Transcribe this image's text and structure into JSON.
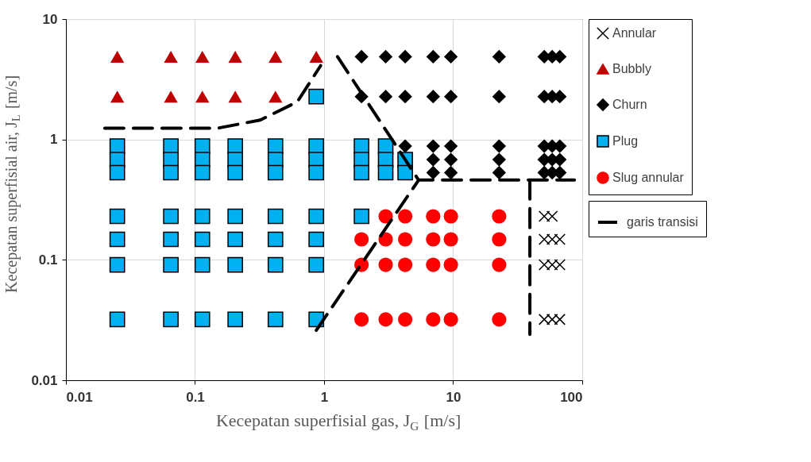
{
  "chart_data": {
    "type": "scatter",
    "xlabel": "Kecepatan superfisial gas, J$_{G}$ [m/s]",
    "ylabel": "Kecepatan superfisial air, J$_{L}$ [m/s]",
    "log": "xy",
    "grid": true,
    "legend": "right",
    "xlim": [
      0.01,
      100
    ],
    "ylim": [
      0.01,
      10
    ],
    "xticks": [
      0.01,
      0.1,
      1,
      10,
      100
    ],
    "yticks": [
      0.01,
      0.1,
      1,
      10
    ],
    "series": [
      {
        "name": "Annular",
        "color": "#000000",
        "marker": "cross",
        "x": [
          50.8,
          58.5,
          50.8,
          58.5,
          67,
          50.8,
          58.5,
          67,
          50.8,
          58.5,
          67
        ],
        "values": [
          0.23,
          0.23,
          0.148,
          0.148,
          0.148,
          0.091,
          0.091,
          0.091,
          0.032,
          0.032,
          0.032
        ]
      },
      {
        "name": "Bubbly",
        "color": "#c00000",
        "marker": "triangle",
        "x": [
          0.025,
          0.065,
          0.114,
          0.205,
          0.42,
          0.87,
          0.025,
          0.065,
          0.114,
          0.205,
          0.42
        ],
        "values": [
          4.87,
          4.87,
          4.87,
          4.87,
          4.87,
          4.87,
          2.27,
          2.27,
          2.27,
          2.27,
          2.27
        ]
      },
      {
        "name": "Churn",
        "color": "#000000",
        "marker": "diamond",
        "x": [
          1.95,
          3.0,
          4.25,
          7.0,
          9.6,
          22.7,
          50.8,
          58.5,
          67,
          1.95,
          3.0,
          4.25,
          7.0,
          9.6,
          22.7,
          50.8,
          58.5,
          67,
          4.25,
          7.0,
          7.0,
          7.0,
          9.6,
          9.6,
          9.6,
          22.7,
          22.7,
          22.7,
          50.8,
          50.8,
          50.8,
          58.5,
          58.5,
          58.5,
          67,
          67,
          67
        ],
        "values": [
          4.87,
          4.87,
          4.87,
          4.87,
          4.87,
          4.87,
          4.87,
          4.87,
          4.87,
          2.27,
          2.27,
          2.27,
          2.27,
          2.27,
          2.27,
          2.27,
          2.27,
          2.27,
          0.88,
          0.88,
          0.68,
          0.53,
          0.88,
          0.68,
          0.53,
          0.88,
          0.68,
          0.53,
          0.88,
          0.68,
          0.53,
          0.88,
          0.68,
          0.53,
          0.88,
          0.68,
          0.53
        ]
      },
      {
        "name": "Plug",
        "color": "#00b0f0",
        "marker": "square",
        "x": [
          0.025,
          0.025,
          0.025,
          0.025,
          0.025,
          0.025,
          0.025,
          0.065,
          0.065,
          0.065,
          0.065,
          0.065,
          0.065,
          0.065,
          0.114,
          0.114,
          0.114,
          0.114,
          0.114,
          0.114,
          0.114,
          0.205,
          0.205,
          0.205,
          0.205,
          0.205,
          0.205,
          0.205,
          0.42,
          0.42,
          0.42,
          0.42,
          0.42,
          0.42,
          0.42,
          0.87,
          0.87,
          0.87,
          0.87,
          0.87,
          0.87,
          0.87,
          0.87,
          1.95,
          1.95,
          1.95,
          1.95,
          3.0,
          3.0,
          3.0,
          4.25,
          4.25
        ],
        "values": [
          0.88,
          0.68,
          0.53,
          0.23,
          0.148,
          0.091,
          0.032,
          0.88,
          0.68,
          0.53,
          0.23,
          0.148,
          0.091,
          0.032,
          0.88,
          0.68,
          0.53,
          0.23,
          0.148,
          0.091,
          0.032,
          0.88,
          0.68,
          0.53,
          0.23,
          0.148,
          0.091,
          0.032,
          0.88,
          0.68,
          0.53,
          0.23,
          0.148,
          0.091,
          0.032,
          2.27,
          0.88,
          0.68,
          0.53,
          0.23,
          0.148,
          0.091,
          0.032,
          0.88,
          0.68,
          0.53,
          0.23,
          0.88,
          0.68,
          0.53,
          0.68,
          0.53
        ]
      },
      {
        "name": "Slug annular",
        "color": "#ff0000",
        "marker": "circle",
        "x": [
          1.95,
          1.95,
          1.95,
          3.0,
          3.0,
          3.0,
          3.0,
          4.25,
          4.25,
          4.25,
          4.25,
          7.0,
          7.0,
          7.0,
          7.0,
          9.6,
          9.6,
          9.6,
          9.6,
          22.7,
          22.7,
          22.7,
          22.7
        ],
        "values": [
          0.148,
          0.091,
          0.032,
          0.23,
          0.148,
          0.091,
          0.032,
          0.23,
          0.148,
          0.091,
          0.032,
          0.23,
          0.148,
          0.091,
          0.032,
          0.23,
          0.148,
          0.091,
          0.032,
          0.23,
          0.148,
          0.091,
          0.032
        ]
      },
      {
        "name": "garis transisi",
        "color": "#000000",
        "type": "line",
        "line_style": "dashed",
        "marker": "none",
        "x": [
          0.02,
          0.15,
          0.32,
          0.62,
          0.94,
          null,
          1.27,
          5.4,
          39.3,
          87,
          null,
          39.3,
          39.3,
          null,
          0.87,
          5.4
        ],
        "values": [
          1.24,
          1.24,
          1.45,
          2.05,
          4.1,
          null,
          4.87,
          0.46,
          0.46,
          0.46,
          null,
          0.46,
          0.024,
          null,
          0.026,
          0.46
        ]
      }
    ]
  }
}
